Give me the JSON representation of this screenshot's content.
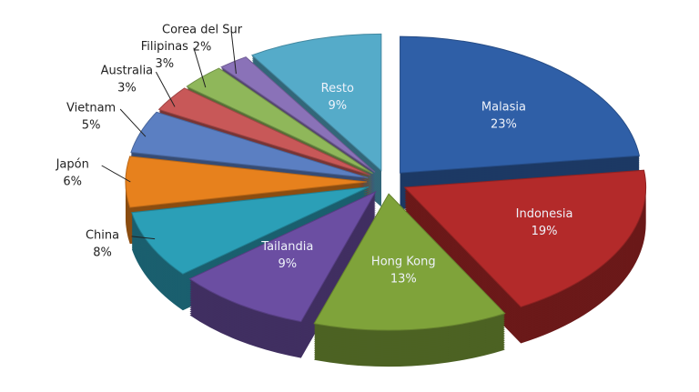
{
  "chart_data": {
    "type": "pie",
    "categories": [
      "Malasia",
      "Indonesia",
      "Hong Kong",
      "Tailandia",
      "China",
      "Japón",
      "Vietnam",
      "Australia",
      "Filipinas",
      "Corea del Sur",
      "Resto"
    ],
    "values": [
      23,
      19,
      13,
      9,
      8,
      6,
      5,
      3,
      3,
      2,
      9
    ],
    "value_labels": [
      "23%",
      "19%",
      "13%",
      "9%",
      "8%",
      "6%",
      "5%",
      "3%",
      "3%",
      "2%",
      "9%"
    ],
    "colors": [
      "#2f5fa7",
      "#b32a2a",
      "#7fa33a",
      "#6b4ea2",
      "#2b9fb7",
      "#e7811d",
      "#5b7fc2",
      "#c85858",
      "#8fb75a",
      "#8a72b8",
      "#55abc9"
    ]
  }
}
